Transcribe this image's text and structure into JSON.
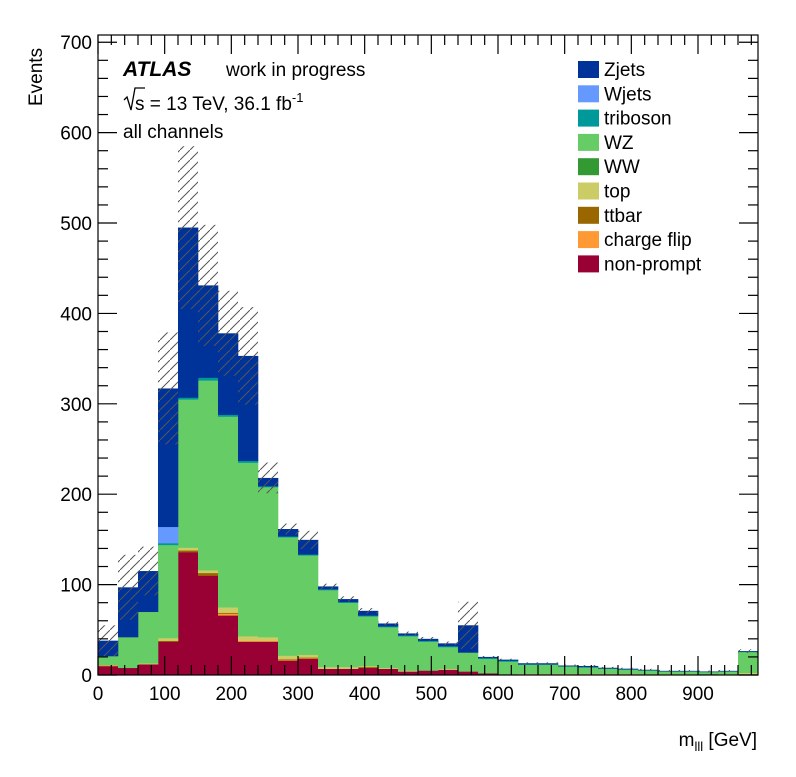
{
  "chart_data": {
    "type": "bar",
    "stacked": true,
    "title": "",
    "xlabel_main": "m",
    "xlabel_sub": "lll",
    "xlabel_unit": " [GeV]",
    "ylabel": "Events",
    "xlim": [
      0,
      990
    ],
    "ylim": [
      0,
      708
    ],
    "bin_width": 30,
    "bin_edges_start": 0,
    "xticks": [
      "0",
      "100",
      "200",
      "300",
      "400",
      "500",
      "600",
      "700",
      "800",
      "900"
    ],
    "xtick_values": [
      0,
      100,
      200,
      300,
      400,
      500,
      600,
      700,
      800,
      900
    ],
    "yticks": [
      "0",
      "100",
      "200",
      "300",
      "400",
      "500",
      "600",
      "700"
    ],
    "ytick_values": [
      0,
      100,
      200,
      300,
      400,
      500,
      600,
      700
    ],
    "annotations": {
      "experiment": "ATLAS",
      "status": "work in progress",
      "energy_prefix": "s",
      "energy_text": " = 13 TeV, 36.1 fb",
      "lumi_exp": "-1",
      "channel": "all channels"
    },
    "legend_placement": "top-right",
    "series": [
      {
        "name": "non-prompt",
        "color": "#990033",
        "values": [
          10,
          8,
          12,
          37,
          136,
          110,
          66,
          37,
          37,
          16,
          18,
          7,
          7,
          8,
          7,
          4,
          5,
          6,
          4,
          2,
          1,
          1,
          1,
          1,
          1,
          1,
          0.5,
          0.5,
          0.5,
          0.5,
          0.5,
          0.5,
          1
        ]
      },
      {
        "name": "charge flip",
        "color": "#ff9933",
        "values": [
          1,
          0,
          0,
          0,
          0,
          0,
          2,
          1,
          1,
          0.5,
          0.5,
          0,
          0,
          0,
          0,
          0,
          0,
          0,
          0,
          0,
          0,
          0,
          0,
          0,
          0,
          0,
          0,
          0,
          0,
          0,
          0,
          0,
          0
        ]
      },
      {
        "name": "ttbar",
        "color": "#996600",
        "values": [
          0,
          0,
          0,
          1,
          2,
          3,
          1,
          0,
          0,
          1,
          1,
          0,
          0,
          1,
          0,
          0,
          0,
          0,
          0,
          0,
          0,
          0,
          0,
          0,
          0,
          0,
          0.5,
          0,
          0,
          0,
          0,
          0,
          0
        ]
      },
      {
        "name": "top",
        "color": "#cccc66",
        "values": [
          0,
          0,
          1,
          3,
          3,
          3,
          6,
          5,
          4,
          4,
          3,
          2,
          2,
          1,
          1,
          1,
          0,
          1,
          0,
          0,
          0,
          0.5,
          0.5,
          0.5,
          0.5,
          0.5,
          0.5,
          0.5,
          0.5,
          0.5,
          0.5,
          0.5,
          1.5
        ]
      },
      {
        "name": "WW",
        "color": "#339933",
        "values": [
          0,
          0,
          0,
          0,
          0,
          0,
          0,
          0,
          0,
          0,
          0,
          0,
          0,
          0,
          0,
          0,
          0,
          0,
          0,
          0,
          0,
          0,
          0,
          0,
          0,
          0,
          0,
          0,
          0,
          0,
          0.3,
          0,
          0
        ]
      },
      {
        "name": "WZ",
        "color": "#66cc66",
        "values": [
          10,
          34,
          57,
          103,
          164,
          210,
          211,
          192,
          166,
          131,
          110,
          85,
          71,
          55,
          45,
          38,
          32,
          24,
          21,
          16,
          14,
          10,
          10,
          8,
          7,
          5.5,
          4.5,
          4,
          3,
          3,
          2,
          3,
          23
        ]
      },
      {
        "name": "triboson",
        "color": "#009999",
        "values": [
          0,
          0,
          0,
          2,
          2,
          3,
          2,
          2,
          1,
          1,
          1,
          1,
          1,
          1,
          1,
          1,
          1,
          1,
          0,
          1,
          1,
          0.5,
          0.5,
          0.5,
          0.5,
          0.5,
          0.5,
          0.5,
          0.3,
          0.3,
          0.3,
          0.3,
          0.5
        ]
      },
      {
        "name": "Wjets",
        "color": "#6699ff",
        "values": [
          0,
          0,
          0,
          18,
          0,
          0,
          0,
          0,
          0,
          0,
          0,
          0,
          0,
          0,
          0,
          0,
          0,
          0,
          0,
          0,
          0,
          0,
          0,
          0,
          0,
          0,
          0,
          0,
          0,
          0,
          0,
          0,
          0
        ]
      },
      {
        "name": "Zjets",
        "color": "#003399",
        "values": [
          17,
          55,
          45,
          153,
          188,
          102,
          90,
          116,
          9,
          8,
          16,
          3,
          3,
          5,
          3,
          2,
          2,
          3,
          30,
          1,
          1,
          1,
          1,
          0.5,
          1,
          0.5,
          0.5,
          0.3,
          0.3,
          0.3,
          0.3,
          0.3,
          0.5
        ]
      }
    ],
    "legend_order": [
      "Zjets",
      "Wjets",
      "triboson",
      "WZ",
      "WW",
      "top",
      "ttbar",
      "charge flip",
      "non-prompt"
    ],
    "uncertainty": [
      17,
      36,
      27,
      62,
      90,
      67,
      47,
      54,
      17,
      6,
      10,
      3,
      3,
      3,
      2,
      2,
      2,
      2,
      26,
      1,
      1,
      1,
      1,
      1,
      1,
      1,
      1,
      1,
      1,
      1,
      1,
      1,
      2
    ]
  }
}
